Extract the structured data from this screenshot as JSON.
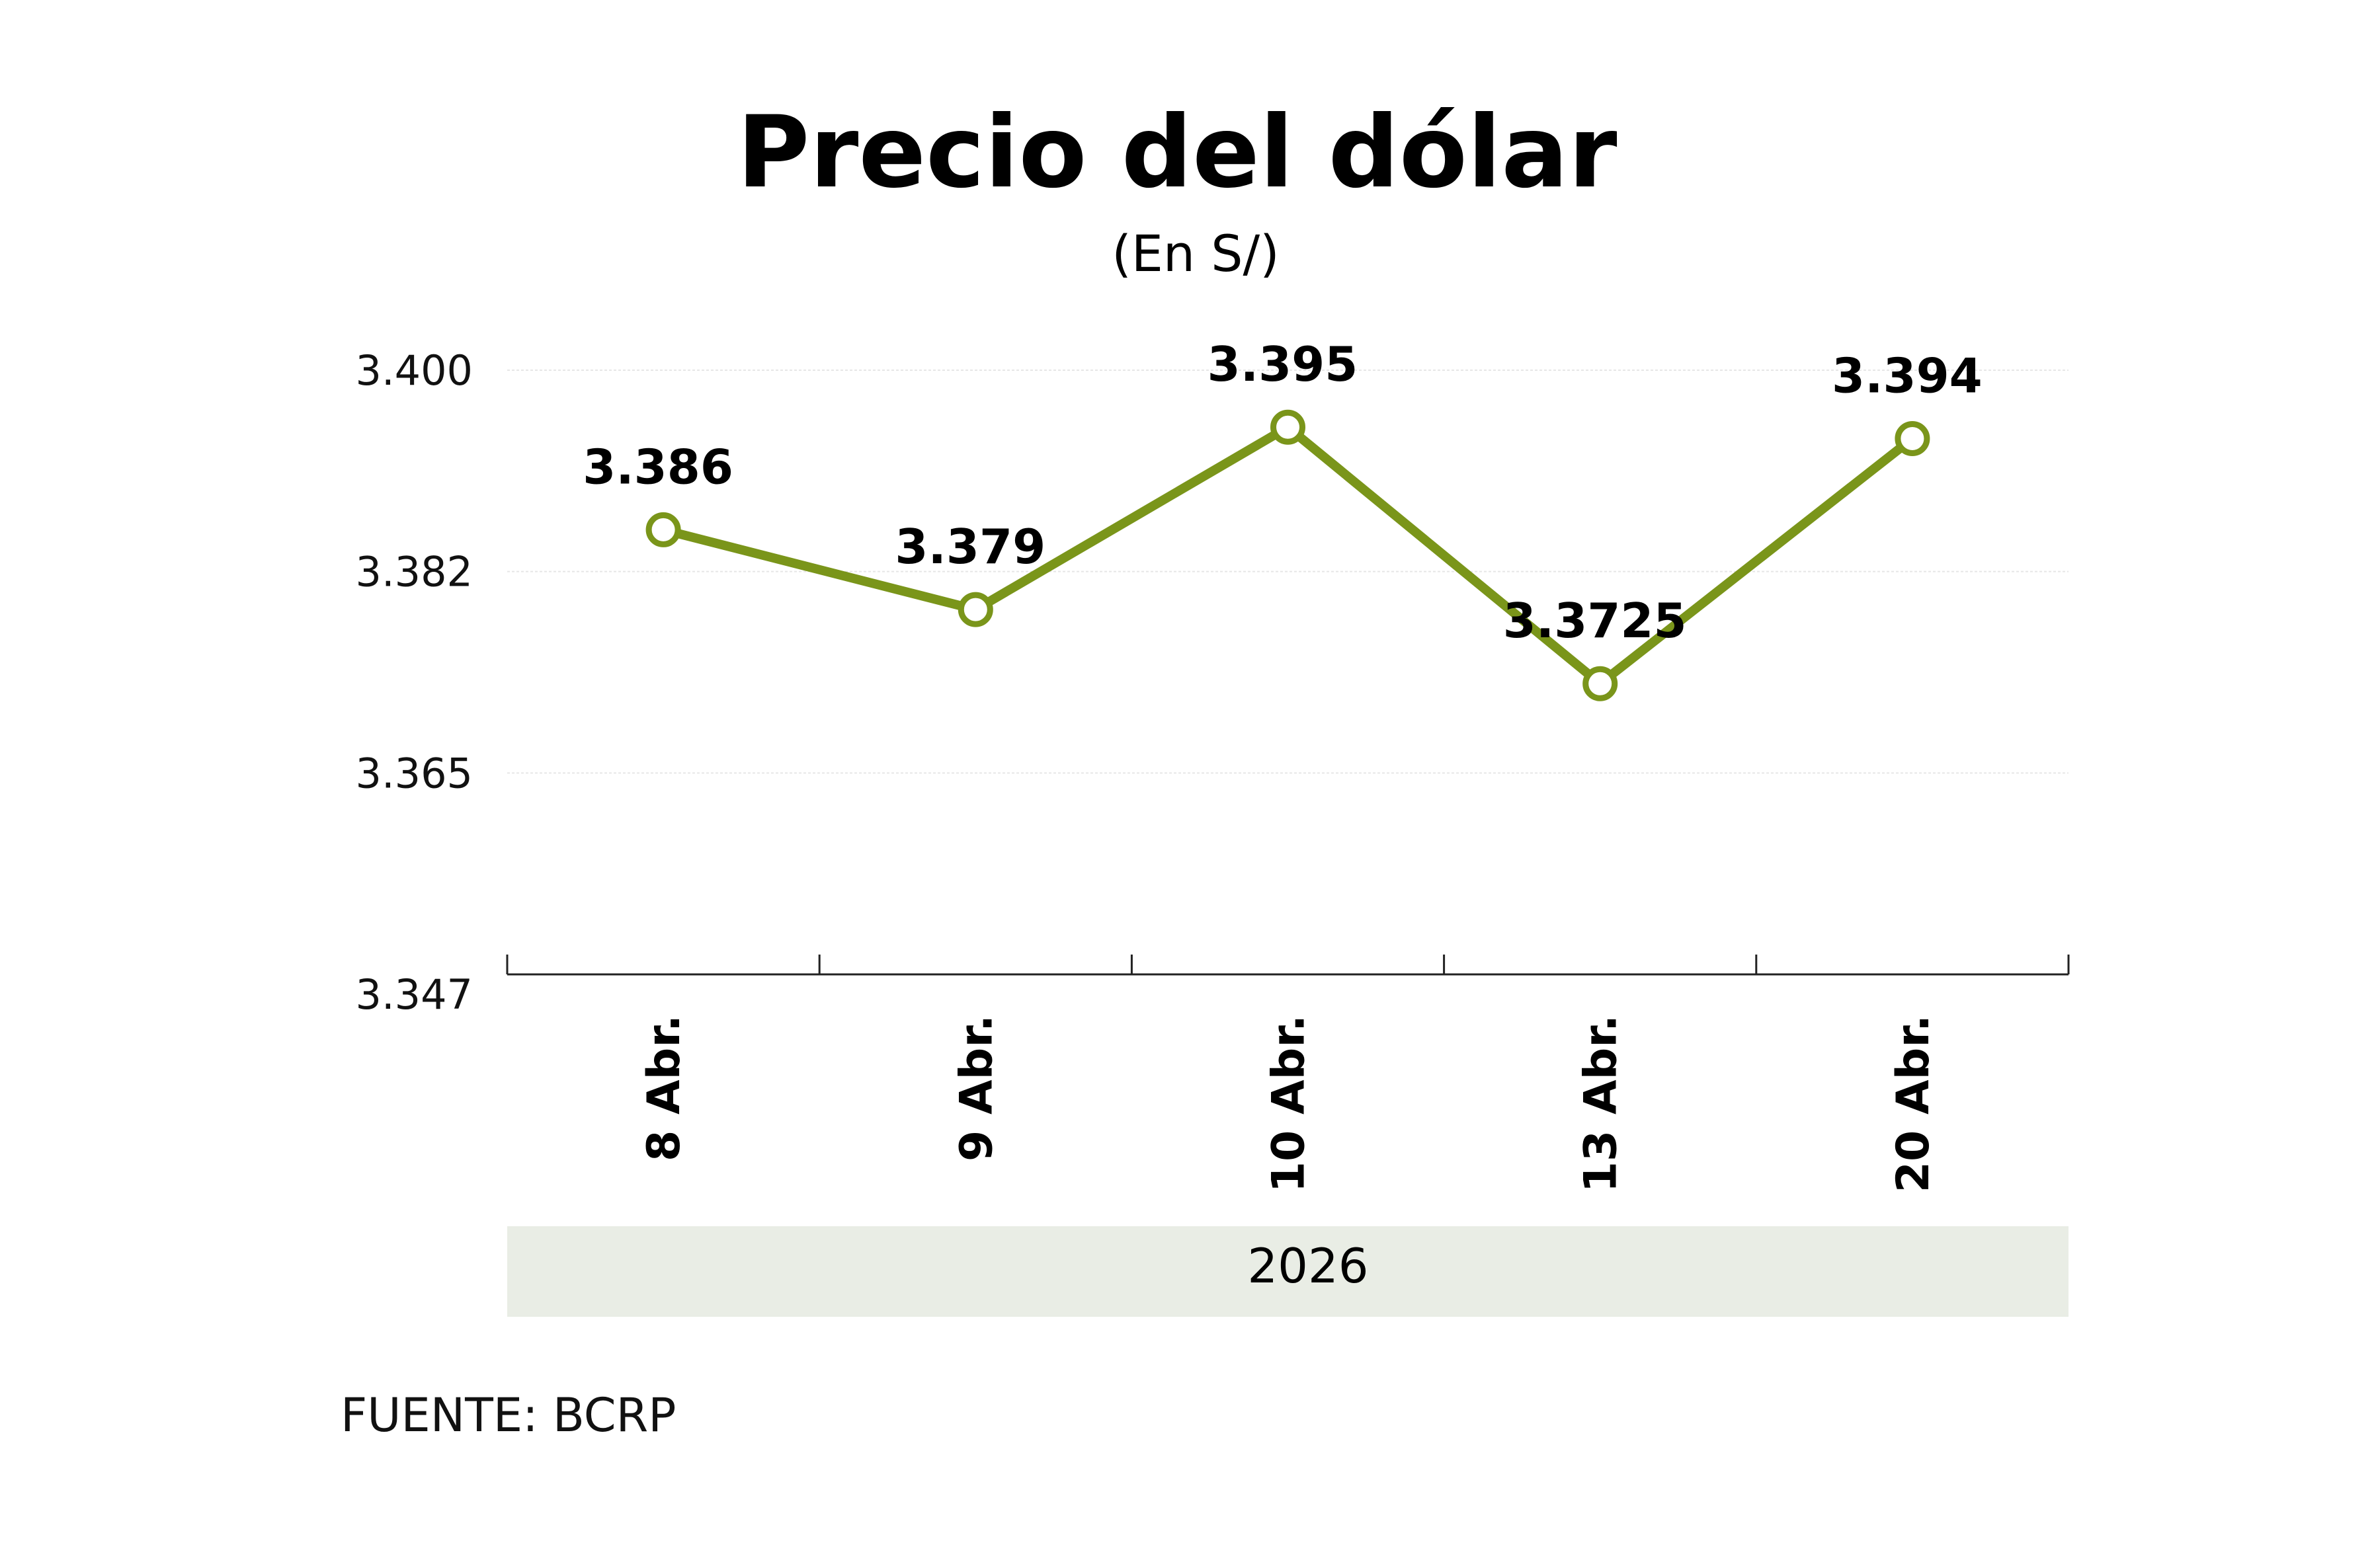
{
  "chart_data": {
    "type": "line",
    "title": "Precio del dólar",
    "subtitle": "(En S/)",
    "categories": [
      "8 Abr.",
      "9 Abr.",
      "10 Abr.",
      "13 Abr.",
      "20 Abr."
    ],
    "values": [
      3.386,
      3.379,
      3.395,
      3.3725,
      3.394
    ],
    "data_labels": [
      "3.386",
      "3.379",
      "3.395",
      "3.3725",
      "3.394"
    ],
    "yticks": [
      "3.400",
      "3.382",
      "3.365",
      "3.347"
    ],
    "ylim": [
      3.347,
      3.4
    ],
    "xgroup_label": "2026",
    "grid": true,
    "line_color": "#7a951a",
    "band_color": "#e9ede5",
    "source": "FUENTE: BCRP"
  }
}
